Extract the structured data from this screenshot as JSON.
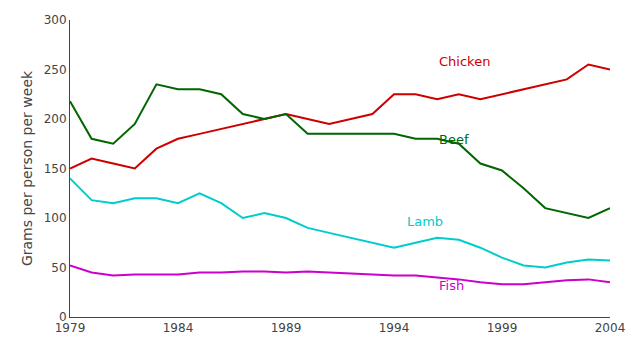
{
  "chart_data": {
    "type": "line",
    "y_label": "Grams per person per week",
    "x": [
      1979,
      1980,
      1981,
      1982,
      1983,
      1984,
      1985,
      1986,
      1987,
      1988,
      1989,
      1990,
      1991,
      1992,
      1993,
      1994,
      1995,
      1996,
      1997,
      1998,
      1999,
      2000,
      2001,
      2002,
      2003,
      2004
    ],
    "series": [
      {
        "name": "Chicken",
        "color": "#cc0000",
        "values": [
          150,
          160,
          155,
          150,
          170,
          180,
          185,
          190,
          195,
          200,
          205,
          200,
          195,
          200,
          205,
          225,
          225,
          220,
          225,
          220,
          225,
          230,
          235,
          240,
          255,
          250
        ]
      },
      {
        "name": "Beef",
        "color": "#006600",
        "values": [
          218,
          180,
          175,
          195,
          235,
          230,
          230,
          225,
          205,
          200,
          205,
          185,
          185,
          185,
          185,
          185,
          180,
          180,
          175,
          155,
          148,
          130,
          110,
          105,
          100,
          110
        ]
      },
      {
        "name": "Lamb",
        "color": "#00cccc",
        "values": [
          140,
          118,
          115,
          120,
          120,
          115,
          125,
          115,
          100,
          105,
          100,
          90,
          85,
          80,
          75,
          70,
          75,
          80,
          78,
          70,
          60,
          52,
          50,
          55,
          58,
          57
        ]
      },
      {
        "name": "Fish",
        "color": "#cc00cc",
        "values": [
          52,
          45,
          42,
          43,
          43,
          43,
          45,
          45,
          46,
          46,
          45,
          46,
          45,
          44,
          43,
          42,
          42,
          40,
          38,
          35,
          33,
          33,
          35,
          37,
          38,
          35
        ]
      }
    ],
    "annotations": [
      {
        "text": "Chicken",
        "x": 1996,
        "y": 248,
        "color": "#cc0000"
      },
      {
        "text": "Beef",
        "x": 1996,
        "y": 170,
        "color": "#006600"
      },
      {
        "text": "Lamb",
        "x": 1994.5,
        "y": 87,
        "color": "#00cccc"
      },
      {
        "text": "Fish",
        "x": 1996,
        "y": 22,
        "color": "#cc00cc"
      }
    ],
    "xlim": [
      1979,
      2004
    ],
    "xticks": [
      1979,
      1984,
      1989,
      1994,
      1999,
      2004
    ],
    "ylim": [
      0,
      300
    ],
    "yticks": [
      0,
      50,
      100,
      150,
      200,
      250,
      300
    ],
    "grid": false,
    "legend": false
  }
}
